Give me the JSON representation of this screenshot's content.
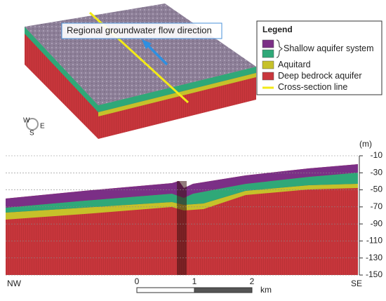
{
  "block_diagram": {
    "flow_label": "Regional groundwater flow direction",
    "compass": {
      "west": "W",
      "east": "E",
      "south": "S"
    }
  },
  "legend": {
    "title": "Legend",
    "items": [
      {
        "label": "Shallow aquifer system",
        "colors": [
          "#7b2f86",
          "#2fa878"
        ]
      },
      {
        "label": "Aquitard",
        "colors": [
          "#c6c12a"
        ]
      },
      {
        "label": "Deep bedrock aquifer",
        "colors": [
          "#c8363c"
        ]
      },
      {
        "label": "Cross-section line",
        "colors": [
          "#f2ea17"
        ],
        "style": "line"
      }
    ]
  },
  "cross_section": {
    "unit": "(m)",
    "ylim": [
      -150,
      -10
    ],
    "yticks": [
      -10,
      -30,
      -50,
      -70,
      -90,
      -110,
      -130,
      -150
    ],
    "left_label": "NW",
    "right_label": "SE"
  },
  "scale_bar": {
    "ticks": [
      0,
      1,
      2
    ],
    "unit": "km"
  }
}
